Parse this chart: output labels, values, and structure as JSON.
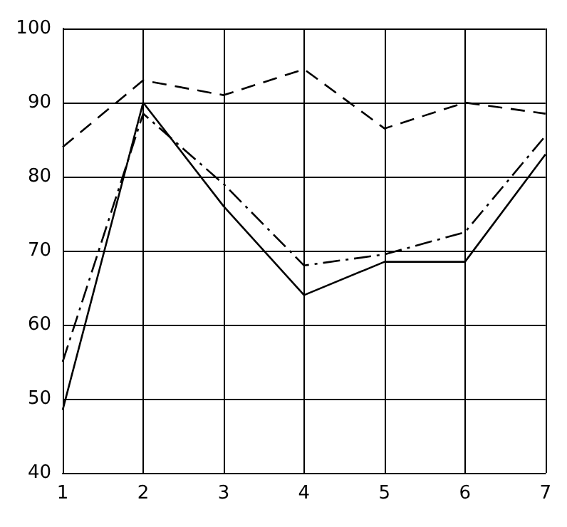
{
  "chart_data": {
    "type": "line",
    "x": [
      1,
      2,
      3,
      4,
      5,
      6,
      7
    ],
    "series": [
      {
        "color": "#000000",
        "line_style": "solid",
        "values": [
          48.5,
          90,
          76,
          64,
          68.5,
          68.5,
          83
        ]
      },
      {
        "color": "#000000",
        "line_style": "dashed",
        "values": [
          84,
          93,
          91,
          94.5,
          86.5,
          90,
          88.5
        ]
      },
      {
        "color": "#000000",
        "line_style": "dashdot",
        "values": [
          55,
          88.5,
          79,
          68,
          69.5,
          72.5,
          85.5
        ]
      }
    ],
    "xlim": [
      1,
      7
    ],
    "xticks": [
      1,
      2,
      3,
      4,
      5,
      6,
      7
    ],
    "ylim": [
      40,
      100
    ],
    "yticks": [
      40,
      50,
      60,
      70,
      80,
      90,
      100
    ],
    "grid": true,
    "marker": "none"
  }
}
